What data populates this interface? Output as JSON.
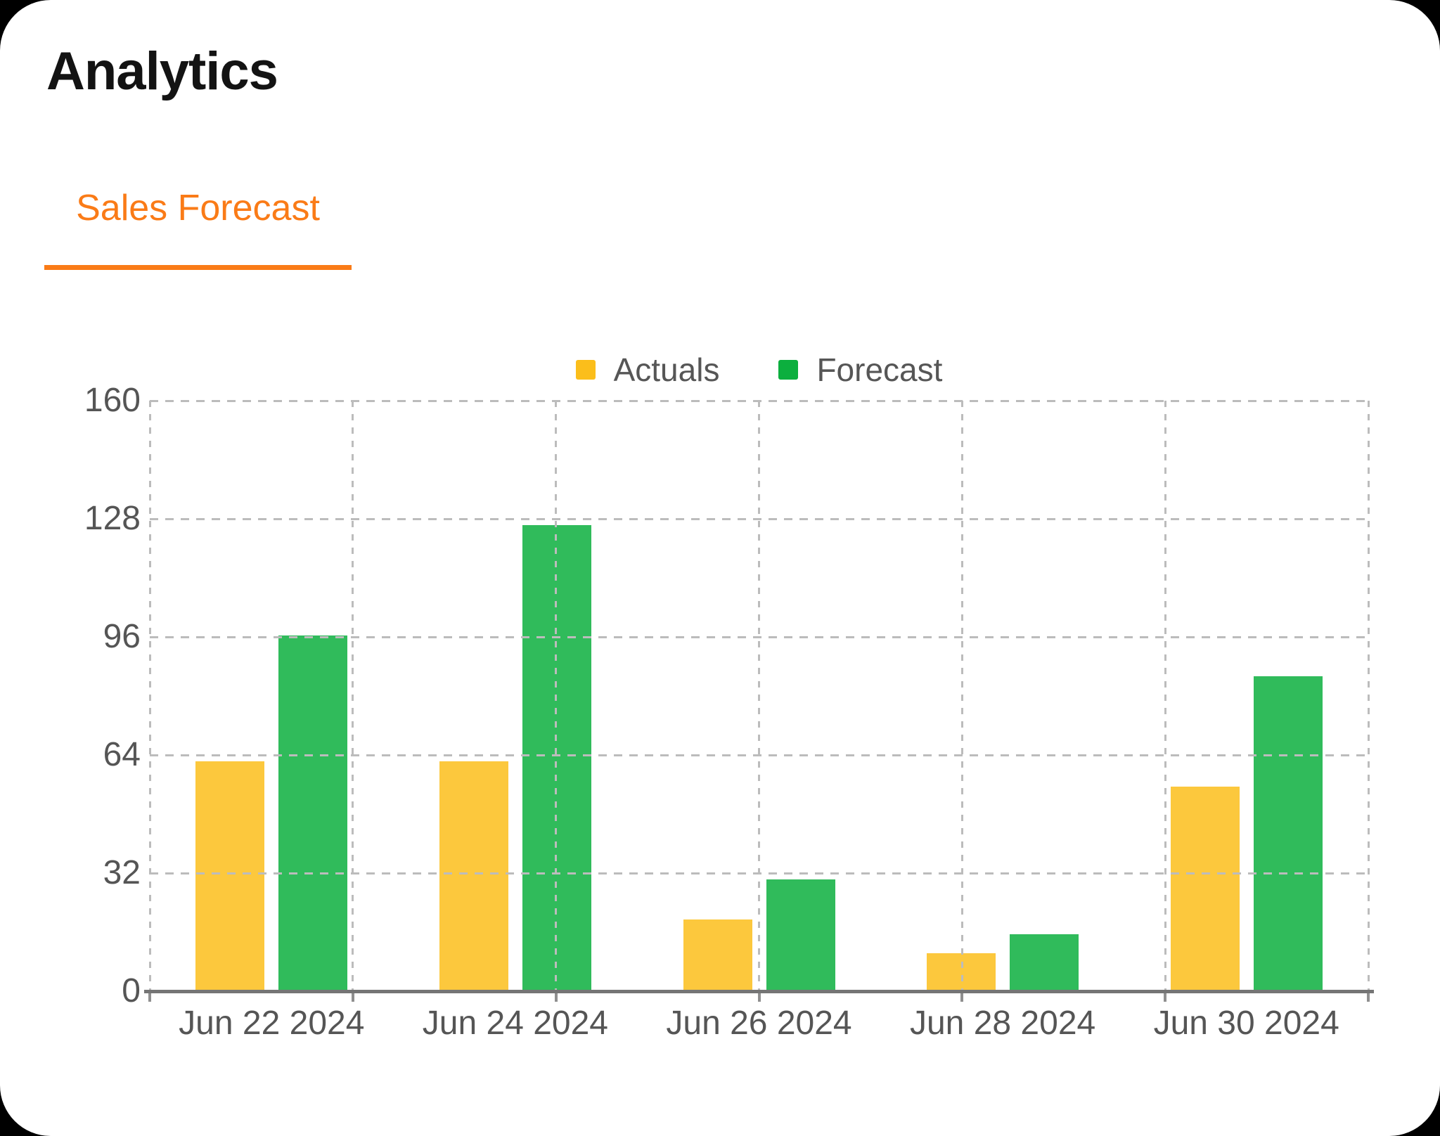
{
  "page": {
    "title": "Analytics",
    "background": "#000000",
    "card_background": "#FFFFFF"
  },
  "tabs": {
    "active": {
      "label": "Sales Forecast",
      "color": "#FA7B17"
    }
  },
  "colors": {
    "accent_orange": "#FA7B17",
    "actuals_yellow": "#FBBE1B",
    "forecast_green": "#0CAF3E",
    "title_text": "#131313",
    "axis_label_gray": "#555555",
    "legend_text_gray": "#565656",
    "axis_line_gray": "#757575",
    "grid_gray": "#BCBCBC"
  },
  "chart_data": {
    "type": "bar",
    "title": "Sales Forecast",
    "categories": [
      "Jun 22 2024",
      "Jun 24 2024",
      "Jun 26 2024",
      "Jun 28 2024",
      "Jun 30 2024"
    ],
    "series": [
      {
        "name": "Actuals",
        "color": "#FBBE1B",
        "values": [
          62,
          62,
          19,
          10,
          55
        ]
      },
      {
        "name": "Forecast",
        "color": "#0CAF3E",
        "values": [
          96,
          126,
          30,
          15,
          85
        ]
      }
    ],
    "xlabel": "",
    "ylabel": "",
    "ylim": [
      0,
      160
    ],
    "yticks": [
      0,
      32,
      64,
      96,
      128,
      160
    ],
    "grid": true,
    "grid_style": "dashed",
    "legend_position": "top"
  }
}
